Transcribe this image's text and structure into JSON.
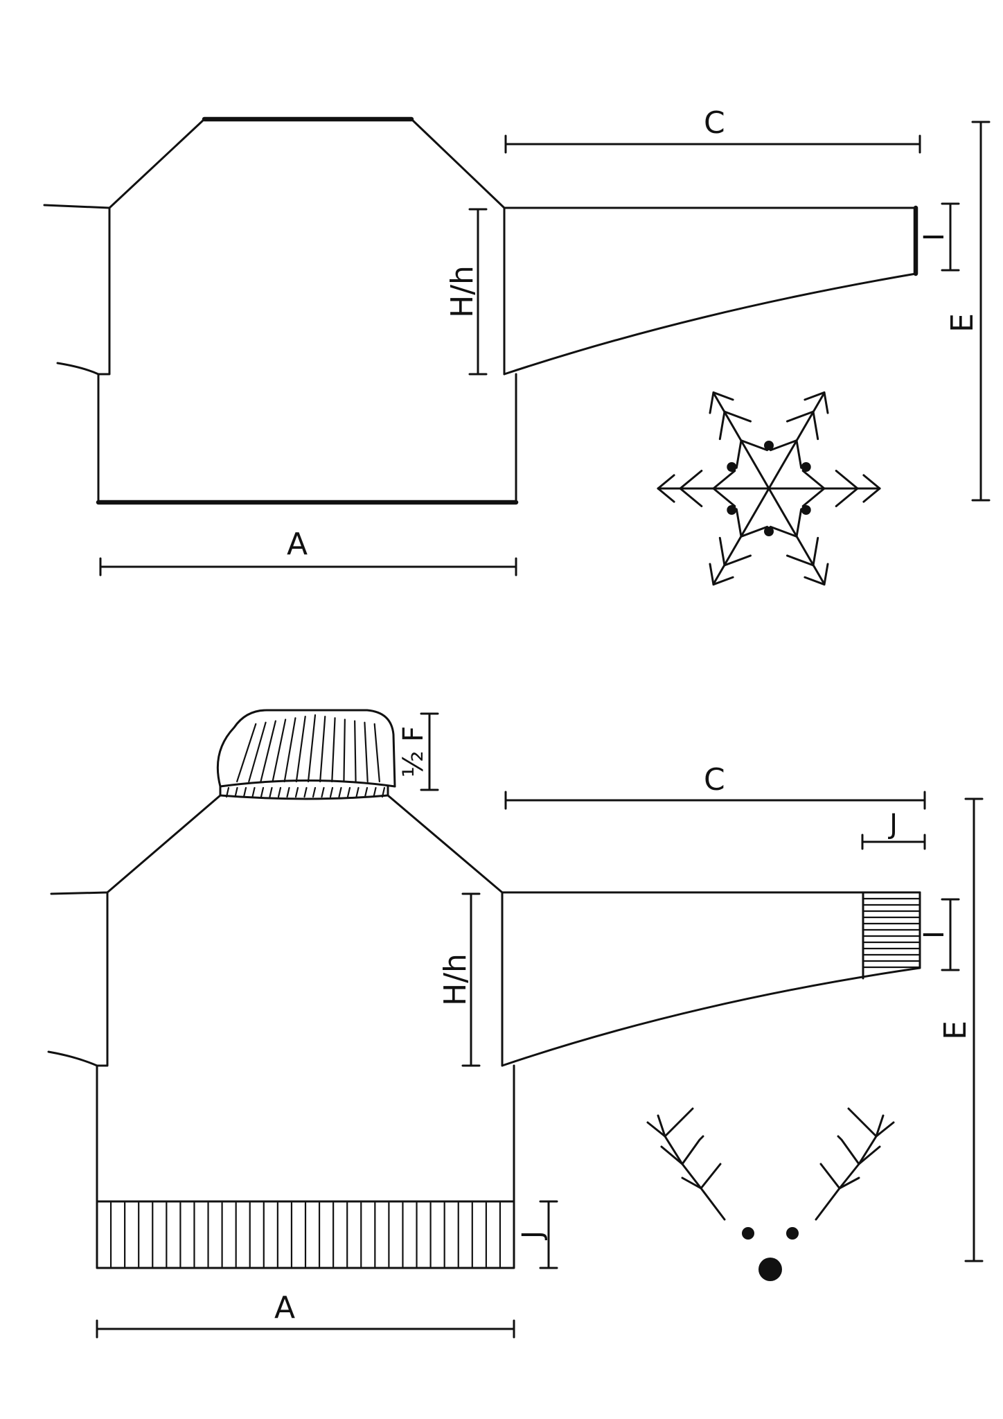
{
  "diagrams": [
    {
      "name": "plain-sweater",
      "labels": {
        "body_width": "A",
        "sleeve_length": "C",
        "armhole_depth": "H/h",
        "cuff_depth": "I",
        "total_length": "E"
      }
    },
    {
      "name": "turtleneck-sweater",
      "labels": {
        "collar_height": "½ F",
        "sleeve_length": "C",
        "cuff_offset": "J",
        "armhole_depth": "H/h",
        "cuff_depth": "I",
        "total_length": "E",
        "hem_rib": "J",
        "body_width": "A"
      }
    }
  ],
  "icons": [
    "snowflake-icon",
    "reindeer-icon"
  ],
  "colors": {
    "ink": "#111111",
    "paper": "#ffffff"
  }
}
